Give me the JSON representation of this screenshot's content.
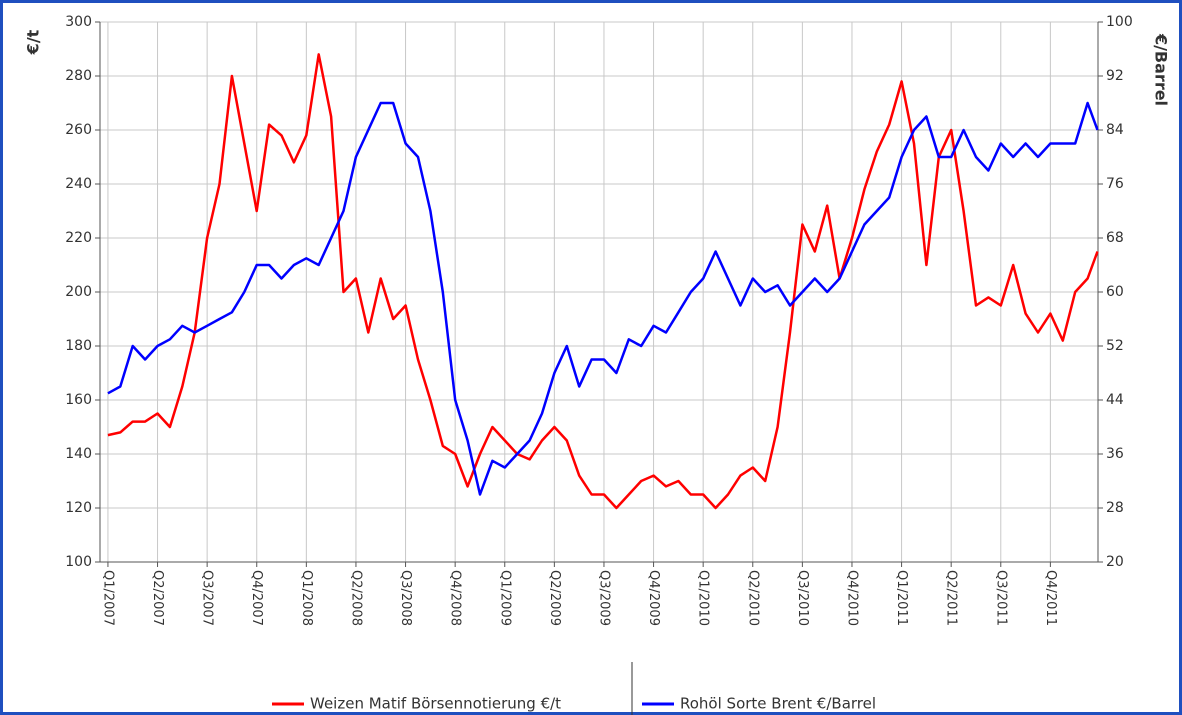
{
  "chart_data": {
    "type": "line",
    "ylabel": "€/t",
    "y2label": "€/Barrel",
    "xlim": [
      -0.16,
      19.96
    ],
    "xticks": [
      {
        "value": 0,
        "label": "Q1/2007"
      },
      {
        "value": 1,
        "label": "Q2/2007"
      },
      {
        "value": 2,
        "label": "Q3/2007"
      },
      {
        "value": 3,
        "label": "Q4/2007"
      },
      {
        "value": 4,
        "label": "Q1/2008"
      },
      {
        "value": 5,
        "label": "Q2/2008"
      },
      {
        "value": 6,
        "label": "Q3/2008"
      },
      {
        "value": 7,
        "label": "Q4/2008"
      },
      {
        "value": 8,
        "label": "Q1/2009"
      },
      {
        "value": 9,
        "label": "Q2/2009"
      },
      {
        "value": 10,
        "label": "Q3/2009"
      },
      {
        "value": 11,
        "label": "Q4/2009"
      },
      {
        "value": 12,
        "label": "Q1/2010"
      },
      {
        "value": 13,
        "label": "Q2/2010"
      },
      {
        "value": 14,
        "label": "Q3/2010"
      },
      {
        "value": 15,
        "label": "Q4/2010"
      },
      {
        "value": 16,
        "label": "Q1/2011"
      },
      {
        "value": 17,
        "label": "Q2/2011"
      },
      {
        "value": 18,
        "label": "Q3/2011"
      },
      {
        "value": 19,
        "label": "Q4/2011"
      }
    ],
    "ylim": [
      100,
      300
    ],
    "yticks": [
      100,
      120,
      140,
      160,
      180,
      200,
      220,
      240,
      260,
      280,
      300
    ],
    "y2lim": [
      20,
      100
    ],
    "y2ticks": [
      20,
      28,
      36,
      44,
      52,
      60,
      68,
      76,
      84,
      92,
      100
    ],
    "grid": true,
    "legend": "bottom",
    "x": [
      0,
      0.25,
      0.5,
      0.75,
      1,
      1.25,
      1.5,
      1.75,
      2,
      2.25,
      2.5,
      2.75,
      3,
      3.25,
      3.5,
      3.75,
      4,
      4.25,
      4.5,
      4.75,
      5,
      5.25,
      5.5,
      5.75,
      6,
      6.25,
      6.5,
      6.75,
      7,
      7.25,
      7.5,
      7.75,
      8,
      8.25,
      8.5,
      8.75,
      9,
      9.25,
      9.5,
      9.75,
      10,
      10.25,
      10.5,
      10.75,
      11,
      11.25,
      11.5,
      11.75,
      12,
      12.25,
      12.5,
      12.75,
      13,
      13.25,
      13.5,
      13.75,
      14,
      14.25,
      14.5,
      14.75,
      15,
      15.25,
      15.5,
      15.75,
      16,
      16.25,
      16.5,
      16.75,
      17,
      17.25,
      17.5,
      17.75,
      18,
      18.25,
      18.5,
      18.75,
      19,
      19.25,
      19.5,
      19.75,
      19.95
    ],
    "series": [
      {
        "name": "Weizen Matif Börsennotierung €/t",
        "color": "#ff0000",
        "values": [
          147,
          148,
          152,
          152,
          155,
          150,
          165,
          185,
          220,
          240,
          280,
          255,
          230,
          262,
          258,
          248,
          258,
          288,
          265,
          200,
          205,
          185,
          205,
          190,
          195,
          175,
          160,
          143,
          140,
          128,
          140,
          150,
          145,
          140,
          138,
          145,
          150,
          145,
          132,
          125,
          125,
          120,
          125,
          130,
          132,
          128,
          130,
          125,
          125,
          120,
          125,
          132,
          135,
          130,
          150,
          185,
          225,
          215,
          232,
          205,
          220,
          238,
          252,
          262,
          278,
          255,
          210,
          250,
          260,
          230,
          195,
          198,
          195,
          210,
          192,
          185,
          192,
          182,
          200,
          205,
          215
        ]
      },
      {
        "name": "Rohöl Sorte Brent €/Barrel",
        "color": "#0000ff",
        "axis": "y2",
        "values": [
          45,
          46,
          52,
          50,
          52,
          53,
          55,
          54,
          55,
          56,
          57,
          60,
          64,
          64,
          62,
          64,
          65,
          64,
          68,
          72,
          80,
          84,
          88,
          88,
          82,
          80,
          72,
          60,
          44,
          38,
          30,
          35,
          34,
          36,
          38,
          42,
          48,
          52,
          46,
          50,
          50,
          48,
          53,
          52,
          55,
          54,
          57,
          60,
          62,
          66,
          62,
          58,
          62,
          60,
          61,
          58,
          60,
          62,
          60,
          62,
          66,
          70,
          72,
          74,
          80,
          84,
          86,
          80,
          80,
          84,
          80,
          78,
          82,
          80,
          82,
          80,
          82,
          82,
          82,
          88,
          84
        ]
      }
    ]
  }
}
